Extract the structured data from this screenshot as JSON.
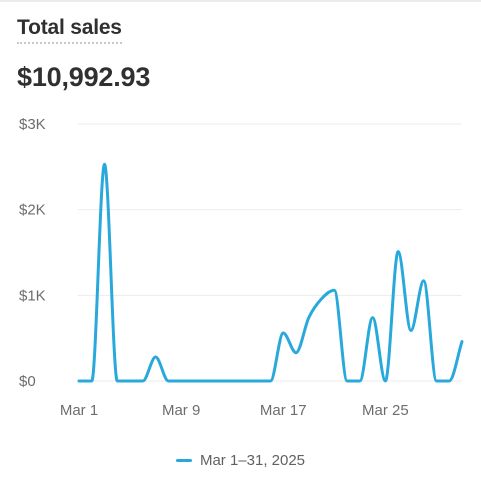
{
  "card": {
    "title": "Total sales",
    "total": "$10,992.93"
  },
  "colors": {
    "line": "#29a9db",
    "grid": "#ebebeb",
    "axis_text": "#6d6d6d"
  },
  "chart_data": {
    "type": "line",
    "title": "Total sales",
    "xlabel": "",
    "ylabel": "",
    "ylim": [
      0,
      3000
    ],
    "y_ticks": [
      {
        "value": 0,
        "label": "$0"
      },
      {
        "value": 1000,
        "label": "$1K"
      },
      {
        "value": 2000,
        "label": "$2K"
      },
      {
        "value": 3000,
        "label": "$3K"
      }
    ],
    "x_ticks": [
      {
        "day": 1,
        "label": "Mar 1"
      },
      {
        "day": 9,
        "label": "Mar 9"
      },
      {
        "day": 17,
        "label": "Mar 17"
      },
      {
        "day": 25,
        "label": "Mar 25"
      }
    ],
    "grid": true,
    "legend_position": "bottom",
    "series": [
      {
        "name": "Mar 1–31, 2025",
        "x": [
          1,
          2,
          3,
          4,
          5,
          6,
          7,
          8,
          9,
          10,
          11,
          12,
          13,
          14,
          15,
          16,
          17,
          18,
          19,
          20,
          21,
          22,
          23,
          24,
          25,
          26,
          27,
          28,
          29,
          30,
          31
        ],
        "values": [
          0,
          0,
          2530,
          0,
          0,
          0,
          280,
          0,
          0,
          0,
          0,
          0,
          0,
          0,
          0,
          0,
          560,
          330,
          740,
          960,
          1060,
          0,
          0,
          740,
          0,
          1510,
          590,
          1170,
          0,
          0,
          460
        ]
      }
    ]
  }
}
